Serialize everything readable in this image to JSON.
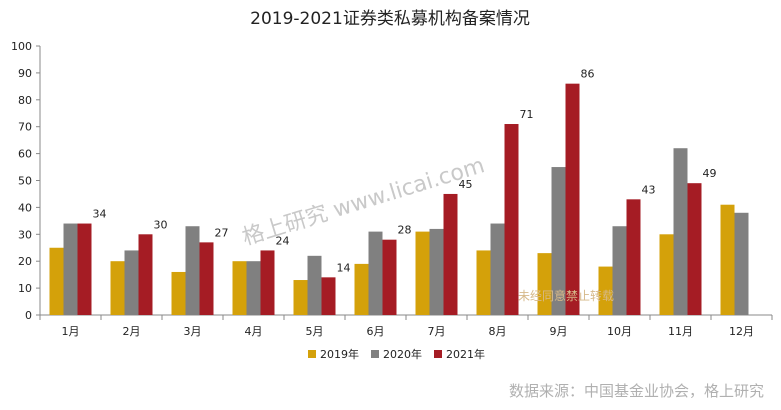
{
  "chart_data": {
    "type": "bar",
    "title": "2019-2021证券类私募机构备案情况",
    "categories": [
      "1月",
      "2月",
      "3月",
      "4月",
      "5月",
      "6月",
      "7月",
      "8月",
      "9月",
      "10月",
      "11月",
      "12月"
    ],
    "series": [
      {
        "name": "2019年",
        "color": "#d4a10a",
        "values": [
          25,
          20,
          16,
          20,
          13,
          19,
          31,
          24,
          23,
          18,
          30,
          41
        ]
      },
      {
        "name": "2020年",
        "color": "#808080",
        "values": [
          34,
          24,
          33,
          20,
          22,
          31,
          32,
          34,
          55,
          33,
          62,
          38
        ]
      },
      {
        "name": "2021年",
        "color": "#a51c24",
        "values": [
          34,
          30,
          27,
          24,
          14,
          28,
          45,
          71,
          86,
          43,
          49,
          null
        ]
      }
    ],
    "data_labels_series": "2021年",
    "ylim": [
      0,
      100
    ],
    "yticks": [
      0,
      10,
      20,
      30,
      40,
      50,
      60,
      70,
      80,
      90,
      100
    ],
    "xlabel": "",
    "ylabel": "",
    "grid": false,
    "legend_position": "bottom"
  },
  "watermark": {
    "text": "格上研究  www.licai.com",
    "notice": "未经同意禁止转载"
  },
  "source_note": "数据来源：中国基金业协会，格上研究"
}
